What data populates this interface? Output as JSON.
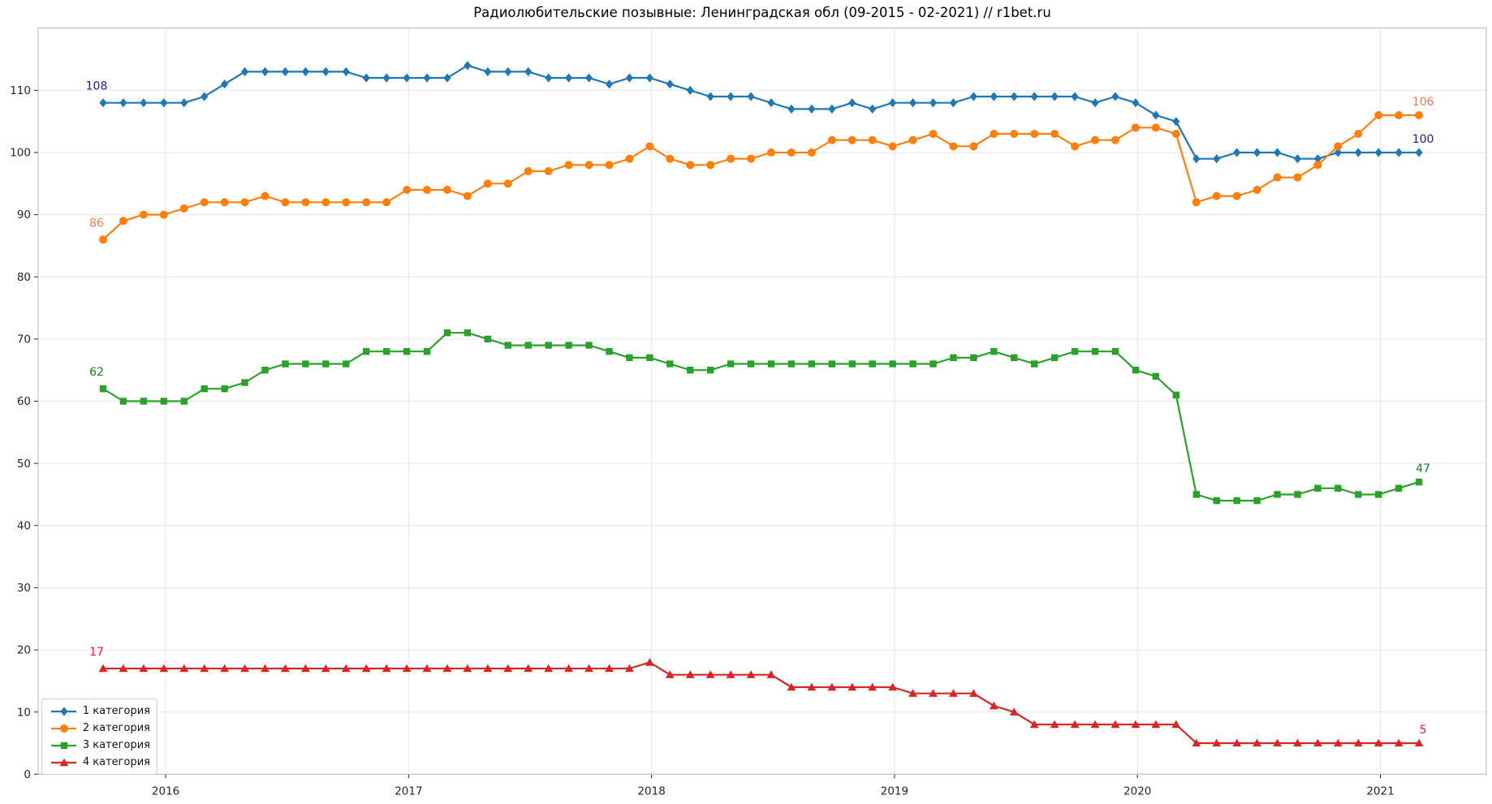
{
  "chart_data": {
    "type": "line",
    "title": "Радиолюбительские позывные: Ленинградская обл (09-2015 - 02-2021) // r1bet.ru",
    "x_tick_labels": [
      "2016",
      "2017",
      "2018",
      "2019",
      "2020",
      "2021"
    ],
    "y_ticks": [
      0,
      10,
      20,
      30,
      40,
      50,
      60,
      70,
      80,
      90,
      100,
      110
    ],
    "ylim": [
      0,
      120
    ],
    "grid": true,
    "legend_position": "lower left",
    "series": [
      {
        "name": "1 категория",
        "color": "#1f77b4",
        "marker": "diamond",
        "label_color": "#1c1c8c",
        "start_label": "108",
        "end_label": "100",
        "values": [
          108,
          108,
          108,
          108,
          108,
          109,
          111,
          113,
          113,
          113,
          113,
          113,
          113,
          112,
          112,
          112,
          112,
          112,
          114,
          113,
          113,
          113,
          112,
          112,
          112,
          111,
          112,
          112,
          111,
          110,
          109,
          109,
          109,
          108,
          107,
          107,
          107,
          108,
          107,
          108,
          108,
          108,
          108,
          109,
          109,
          109,
          109,
          109,
          109,
          108,
          109,
          108,
          106,
          105,
          99,
          99,
          100,
          100,
          100,
          99,
          99,
          100,
          100,
          100,
          100,
          100
        ]
      },
      {
        "name": "2 категория",
        "color": "#ff7f0e",
        "marker": "circle",
        "label_color": "#f4765a",
        "start_label": "86",
        "end_label": "106",
        "values": [
          86,
          89,
          90,
          90,
          91,
          92,
          92,
          92,
          93,
          92,
          92,
          92,
          92,
          92,
          92,
          94,
          94,
          94,
          93,
          95,
          95,
          97,
          97,
          98,
          98,
          98,
          99,
          101,
          99,
          98,
          98,
          99,
          99,
          100,
          100,
          100,
          102,
          102,
          102,
          101,
          102,
          103,
          101,
          101,
          103,
          103,
          103,
          103,
          101,
          102,
          102,
          104,
          104,
          103,
          92,
          93,
          93,
          94,
          96,
          96,
          98,
          101,
          103,
          106,
          106,
          106
        ]
      },
      {
        "name": "3 категория",
        "color": "#2ca02c",
        "marker": "square",
        "label_color": "#1e7d1e",
        "start_label": "62",
        "end_label": "47",
        "values": [
          62,
          60,
          60,
          60,
          60,
          62,
          62,
          63,
          65,
          66,
          66,
          66,
          66,
          68,
          68,
          68,
          68,
          71,
          71,
          70,
          69,
          69,
          69,
          69,
          69,
          68,
          67,
          67,
          66,
          65,
          65,
          66,
          66,
          66,
          66,
          66,
          66,
          66,
          66,
          66,
          66,
          66,
          67,
          67,
          68,
          67,
          66,
          67,
          68,
          68,
          68,
          65,
          64,
          61,
          45,
          44,
          44,
          44,
          45,
          45,
          46,
          46,
          45,
          45,
          46,
          47
        ]
      },
      {
        "name": "4 категория",
        "color": "#d62728",
        "marker": "triangle",
        "label_color": "#e0194b",
        "start_label": "17",
        "end_label": "5",
        "values": [
          17,
          17,
          17,
          17,
          17,
          17,
          17,
          17,
          17,
          17,
          17,
          17,
          17,
          17,
          17,
          17,
          17,
          17,
          17,
          17,
          17,
          17,
          17,
          17,
          17,
          17,
          17,
          18,
          16,
          16,
          16,
          16,
          16,
          16,
          14,
          14,
          14,
          14,
          14,
          14,
          13,
          13,
          13,
          13,
          11,
          10,
          8,
          8,
          8,
          8,
          8,
          8,
          8,
          8,
          5,
          5,
          5,
          5,
          5,
          5,
          5,
          5,
          5,
          5,
          5,
          5
        ]
      }
    ]
  }
}
